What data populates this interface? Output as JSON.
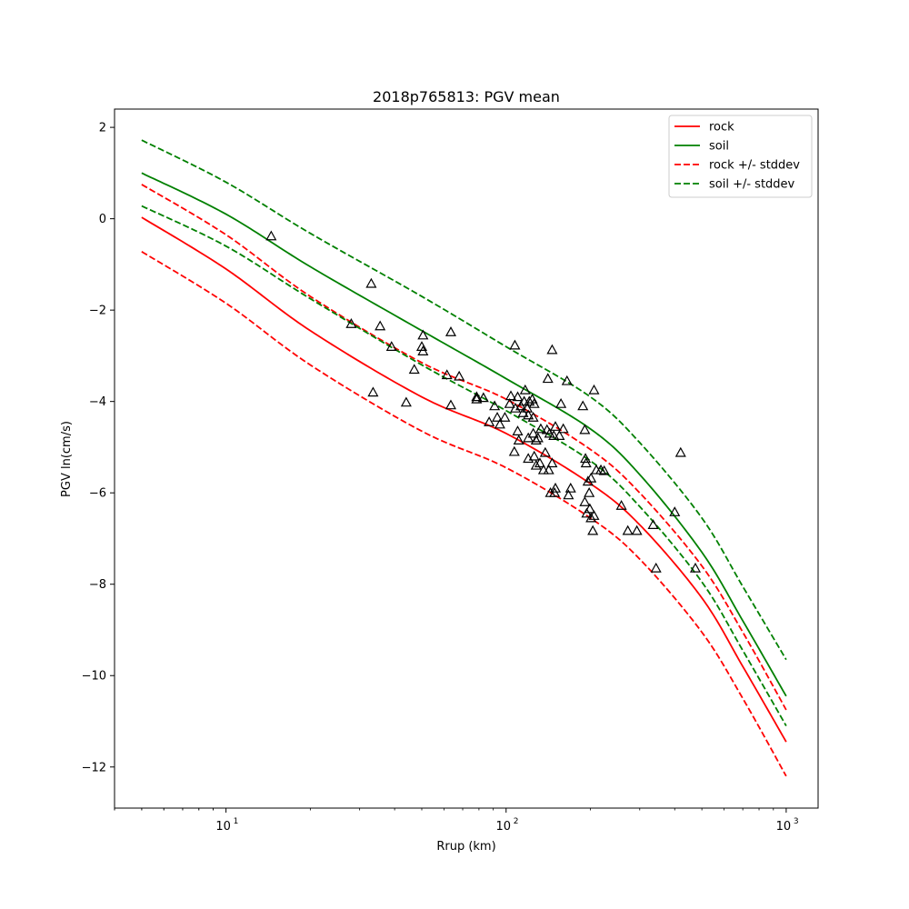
{
  "chart_data": {
    "type": "line",
    "title": "2018p765813: PGV mean",
    "xlabel": "Rrup (km)",
    "ylabel": "PGV ln(cm/s)",
    "xscale": "log",
    "xlim": [
      4.0,
      1300
    ],
    "ylim": [
      -12.9,
      2.4
    ],
    "x_ticks": [
      {
        "value": 10,
        "base": "10",
        "exp": "1"
      },
      {
        "value": 100,
        "base": "10",
        "exp": "2"
      },
      {
        "value": 1000,
        "base": "10",
        "exp": "3"
      }
    ],
    "y_ticks": [
      {
        "value": 2,
        "label": "2"
      },
      {
        "value": 0,
        "label": "0"
      },
      {
        "value": -2,
        "label": "−2"
      },
      {
        "value": -4,
        "label": "−4"
      },
      {
        "value": -6,
        "label": "−6"
      },
      {
        "value": -8,
        "label": "−8"
      },
      {
        "value": -10,
        "label": "−10"
      },
      {
        "value": -12,
        "label": "−12"
      }
    ],
    "grid": false,
    "legend_position": "upper right",
    "series": [
      {
        "name": "rock",
        "color": "#ff0000",
        "style": "solid",
        "x": [
          5,
          10,
          20,
          50,
          100,
          200,
          300,
          500,
          700,
          1000
        ],
        "y": [
          0.03,
          -1.1,
          -2.45,
          -3.9,
          -4.7,
          -5.8,
          -6.7,
          -8.3,
          -9.8,
          -11.45
        ]
      },
      {
        "name": "soil",
        "color": "#008000",
        "style": "solid",
        "x": [
          5,
          10,
          20,
          50,
          100,
          200,
          300,
          500,
          700,
          1000
        ],
        "y": [
          1.0,
          0.1,
          -1.05,
          -2.45,
          -3.5,
          -4.6,
          -5.6,
          -7.3,
          -8.8,
          -10.45
        ]
      },
      {
        "name": "rock +/- stddev",
        "color": "#ff0000",
        "style": "dashed",
        "x": [
          5,
          10,
          20,
          50,
          100,
          200,
          300,
          500,
          700,
          1000
        ],
        "y": [
          0.75,
          -0.35,
          -1.7,
          -3.15,
          -3.95,
          -5.05,
          -6.0,
          -7.6,
          -9.05,
          -10.75
        ]
      },
      {
        "name": "rock +/- stddev (lower)",
        "color": "#ff0000",
        "style": "dashed",
        "legend": false,
        "x": [
          5,
          10,
          20,
          50,
          100,
          200,
          300,
          500,
          700,
          1000
        ],
        "y": [
          -0.72,
          -1.85,
          -3.2,
          -4.65,
          -5.45,
          -6.55,
          -7.45,
          -9.05,
          -10.5,
          -12.2
        ]
      },
      {
        "name": "soil +/- stddev",
        "color": "#008000",
        "style": "dashed",
        "x": [
          5,
          10,
          20,
          50,
          100,
          200,
          300,
          500,
          700,
          1000
        ],
        "y": [
          1.72,
          0.8,
          -0.32,
          -1.7,
          -2.8,
          -3.9,
          -4.9,
          -6.55,
          -8.05,
          -9.65
        ]
      },
      {
        "name": "soil +/- stddev (lower)",
        "color": "#008000",
        "style": "dashed",
        "legend": false,
        "x": [
          5,
          10,
          20,
          50,
          100,
          200,
          300,
          500,
          700,
          1000
        ],
        "y": [
          0.28,
          -0.6,
          -1.75,
          -3.2,
          -4.2,
          -5.3,
          -6.3,
          -7.95,
          -9.45,
          -11.1
        ]
      }
    ],
    "legend": [
      {
        "label": "rock",
        "color": "#ff0000",
        "style": "solid"
      },
      {
        "label": "soil",
        "color": "#008000",
        "style": "solid"
      },
      {
        "label": "rock +/- stddev",
        "color": "#ff0000",
        "style": "dashed"
      },
      {
        "label": "soil +/- stddev",
        "color": "#008000",
        "style": "dashed"
      }
    ],
    "observations": {
      "marker": "triangle",
      "color": "#000000",
      "points": [
        [
          14.5,
          -0.38
        ],
        [
          33,
          -1.42
        ],
        [
          28,
          -2.3
        ],
        [
          35.5,
          -2.35
        ],
        [
          39,
          -2.8
        ],
        [
          33.5,
          -3.8
        ],
        [
          47,
          -3.3
        ],
        [
          44,
          -4.02
        ],
        [
          50.5,
          -2.55
        ],
        [
          50,
          -2.8
        ],
        [
          50.5,
          -2.9
        ],
        [
          63.5,
          -2.48
        ],
        [
          61.5,
          -3.42
        ],
        [
          68,
          -3.45
        ],
        [
          63.5,
          -4.08
        ],
        [
          78.5,
          -3.9
        ],
        [
          78.5,
          -3.95
        ],
        [
          83,
          -3.92
        ],
        [
          87,
          -4.45
        ],
        [
          91,
          -4.1
        ],
        [
          93,
          -4.35
        ],
        [
          95,
          -4.5
        ],
        [
          99,
          -4.35
        ],
        [
          104,
          -3.88
        ],
        [
          103,
          -4.05
        ],
        [
          107.5,
          -2.77
        ],
        [
          108,
          -4.15
        ],
        [
          110,
          -3.9
        ],
        [
          113,
          -4.1
        ],
        [
          117,
          -3.75
        ],
        [
          116,
          -4.0
        ],
        [
          119,
          -4.15
        ],
        [
          121,
          -4.0
        ],
        [
          124,
          -3.95
        ],
        [
          126,
          -4.05
        ],
        [
          115,
          -4.25
        ],
        [
          120,
          -4.3
        ],
        [
          125,
          -4.35
        ],
        [
          110,
          -4.65
        ],
        [
          111,
          -4.85
        ],
        [
          107,
          -5.1
        ],
        [
          120,
          -4.8
        ],
        [
          125,
          -4.7
        ],
        [
          130,
          -4.8
        ],
        [
          133,
          -4.6
        ],
        [
          128,
          -4.85
        ],
        [
          140,
          -4.62
        ],
        [
          143,
          -4.7
        ],
        [
          148,
          -4.75
        ],
        [
          150,
          -4.55
        ],
        [
          120,
          -5.25
        ],
        [
          126,
          -5.2
        ],
        [
          128,
          -5.4
        ],
        [
          132,
          -5.35
        ],
        [
          138,
          -5.12
        ],
        [
          136,
          -5.5
        ],
        [
          142,
          -5.5
        ],
        [
          146,
          -5.35
        ],
        [
          141,
          -3.5
        ],
        [
          146,
          -2.87
        ],
        [
          157,
          -4.05
        ],
        [
          160,
          -4.6
        ],
        [
          155,
          -4.75
        ],
        [
          144,
          -6.0
        ],
        [
          150,
          -5.9
        ],
        [
          149,
          -6.0
        ],
        [
          165,
          -3.55
        ],
        [
          170,
          -5.9
        ],
        [
          167,
          -6.05
        ],
        [
          188,
          -4.1
        ],
        [
          191,
          -4.62
        ],
        [
          192,
          -5.25
        ],
        [
          193,
          -5.35
        ],
        [
          196,
          -5.75
        ],
        [
          198,
          -6.0
        ],
        [
          201,
          -5.68
        ],
        [
          191,
          -6.2
        ],
        [
          194,
          -6.45
        ],
        [
          199,
          -6.35
        ],
        [
          201,
          -6.55
        ],
        [
          206,
          -6.5
        ],
        [
          204,
          -6.83
        ],
        [
          206,
          -3.75
        ],
        [
          210,
          -5.5
        ],
        [
          218,
          -5.5
        ],
        [
          224,
          -5.52
        ],
        [
          258,
          -6.28
        ],
        [
          272,
          -6.83
        ],
        [
          293,
          -6.83
        ],
        [
          335,
          -6.7
        ],
        [
          343,
          -7.65
        ],
        [
          400,
          -6.42
        ],
        [
          420,
          -5.12
        ],
        [
          474,
          -7.65
        ]
      ]
    }
  }
}
